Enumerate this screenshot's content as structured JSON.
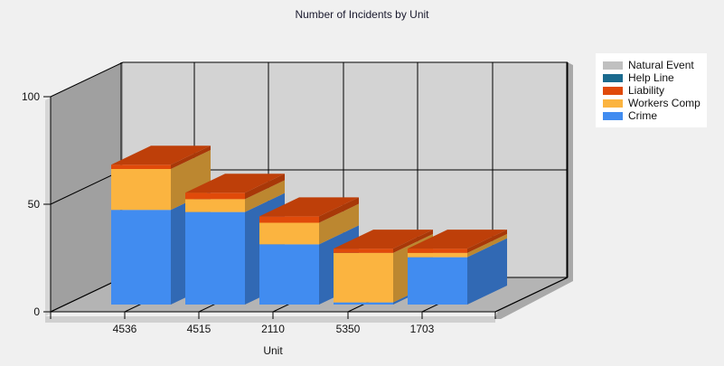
{
  "title": "Number of Incidents by Unit",
  "colors": {
    "Natural Event": "#c0c0c0",
    "Help Line": "#1a6a8e",
    "Liability": "#e04a0a",
    "Workers Comp": "#fbb440",
    "Crime": "#418cf0"
  },
  "legend": [
    {
      "label": "Natural Event",
      "color": "#c0c0c0"
    },
    {
      "label": "Help Line",
      "color": "#1a6a8e"
    },
    {
      "label": "Liability",
      "color": "#e04a0a"
    },
    {
      "label": "Workers Comp",
      "color": "#fbb440"
    },
    {
      "label": "Crime",
      "color": "#418cf0"
    }
  ],
  "chart_data": {
    "type": "bar",
    "stacked": true,
    "three_d": true,
    "title": "Number of Incidents by Unit",
    "xlabel": "Unit",
    "ylabel": "",
    "ylim": [
      0,
      100
    ],
    "yticks": [
      0,
      50,
      100
    ],
    "grid": true,
    "legend_position": "right",
    "categories": [
      "4536",
      "4515",
      "2110",
      "5350",
      "1703"
    ],
    "series": [
      {
        "name": "Crime",
        "values": [
          44,
          43,
          28,
          1,
          22
        ]
      },
      {
        "name": "Workers Comp",
        "values": [
          19,
          6,
          10,
          23,
          2
        ]
      },
      {
        "name": "Liability",
        "values": [
          2,
          3,
          3,
          2,
          2
        ]
      },
      {
        "name": "Help Line",
        "values": [
          0,
          0,
          0,
          0,
          0
        ]
      },
      {
        "name": "Natural Event",
        "values": [
          0,
          0,
          0,
          0,
          0
        ]
      }
    ]
  }
}
